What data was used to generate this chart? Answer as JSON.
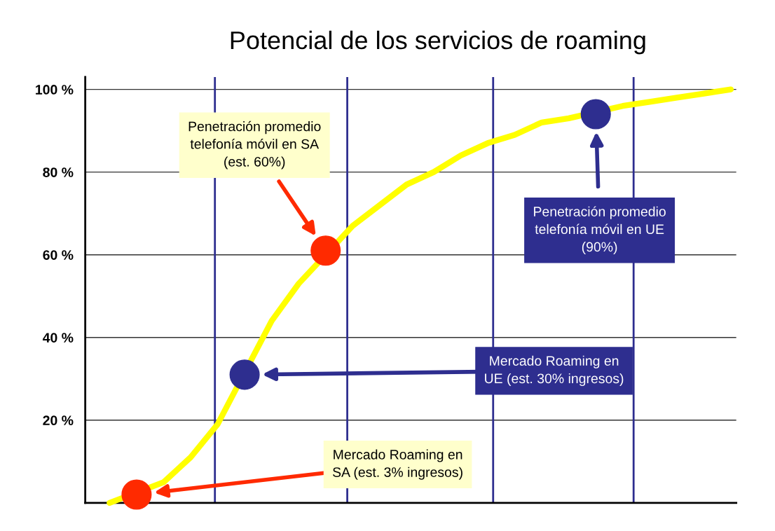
{
  "chart_data": {
    "type": "line",
    "title": "Potencial de los servicios de roaming",
    "categories": [
      null,
      null,
      null,
      null,
      null,
      null,
      null,
      null,
      null,
      null,
      null,
      null,
      null,
      null,
      null,
      null,
      null,
      null,
      null,
      null,
      null,
      null,
      null,
      null
    ],
    "series": [
      {
        "color": "#ffff00",
        "values": [
          0,
          null,
          5,
          11,
          19,
          null,
          44,
          53,
          null,
          67,
          72,
          77,
          80,
          84,
          87,
          89,
          92,
          93,
          null,
          96,
          97,
          98,
          99,
          100
        ]
      },
      {
        "type": "scatter",
        "marker": "circle",
        "colors": [
          null,
          "#ff2a00",
          null,
          null,
          null,
          "#2e2e8f",
          null,
          null,
          "#ff2a00",
          null,
          null,
          null,
          null,
          null,
          null,
          null,
          null,
          null,
          "#2e2e8f",
          null,
          null,
          null,
          null,
          null
        ],
        "values": [
          null,
          2,
          null,
          null,
          null,
          31,
          null,
          null,
          61,
          null,
          null,
          null,
          null,
          null,
          null,
          null,
          null,
          null,
          94,
          null,
          null,
          null,
          null,
          null
        ]
      }
    ],
    "ylim": [
      0,
      103
    ],
    "yticks": [
      {
        "value": 20,
        "label": "20 %"
      },
      {
        "value": 40,
        "label": "40 %"
      },
      {
        "value": 60,
        "label": "60 %"
      },
      {
        "value": 80,
        "label": "80 %"
      },
      {
        "value": 100,
        "label": "100 %"
      }
    ],
    "tick_labels": "y",
    "grid": "y",
    "annotations": [
      "Mercado Roaming en\nSA (est. 3% ingresos)",
      "Mercado Roaming en\nUE (est. 30% ingresos)",
      "Penetración promedio\ntelefonía móvil en SA\n(est. 60%)",
      "Penetración promedio\ntelefonía móvil en UE\n(90%)"
    ]
  }
}
